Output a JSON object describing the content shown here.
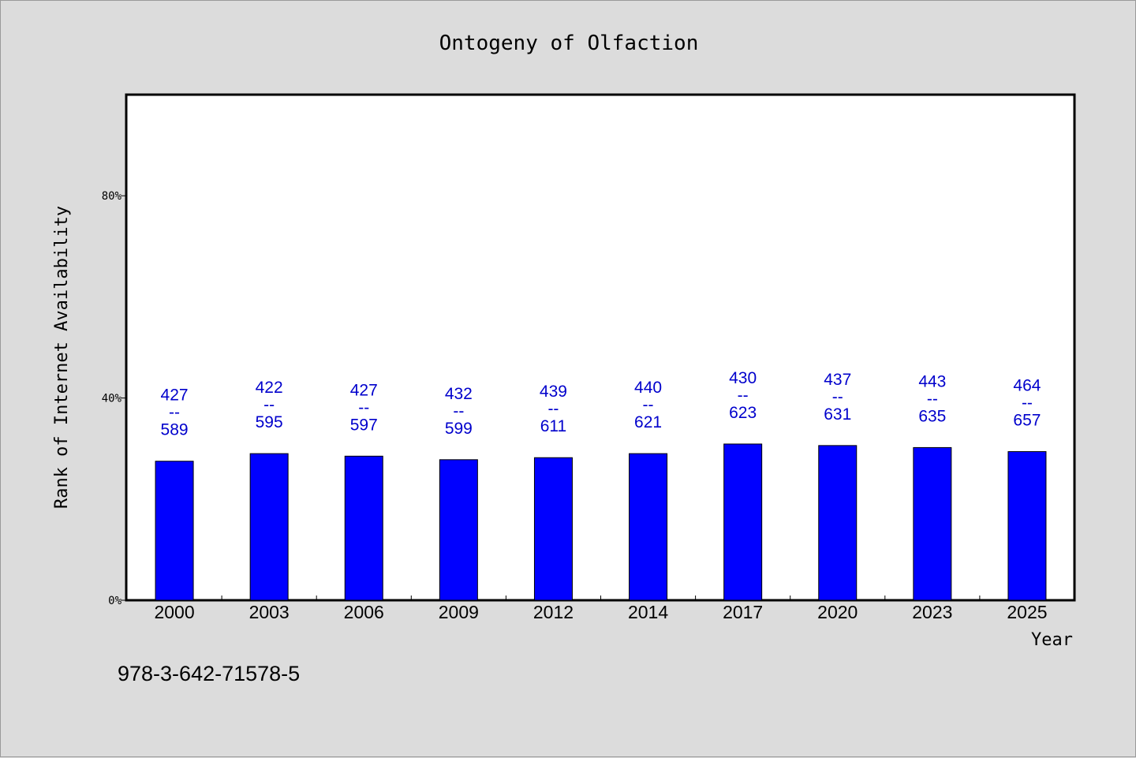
{
  "chart_data": {
    "type": "bar",
    "title": "Ontogeny of Olfaction",
    "xlabel": "Year",
    "ylabel": "Rank of Internet Availability",
    "categories": [
      "2000",
      "2003",
      "2006",
      "2009",
      "2012",
      "2014",
      "2017",
      "2020",
      "2023",
      "2025"
    ],
    "values": [
      27.5,
      29.0,
      28.5,
      27.8,
      28.2,
      29.0,
      30.9,
      30.6,
      30.2,
      29.4
    ],
    "bar_labels": [
      {
        "top": "427",
        "sep": "--",
        "bottom": "589"
      },
      {
        "top": "422",
        "sep": "--",
        "bottom": "595"
      },
      {
        "top": "427",
        "sep": "--",
        "bottom": "597"
      },
      {
        "top": "432",
        "sep": "--",
        "bottom": "599"
      },
      {
        "top": "439",
        "sep": "--",
        "bottom": "611"
      },
      {
        "top": "440",
        "sep": "--",
        "bottom": "621"
      },
      {
        "top": "430",
        "sep": "--",
        "bottom": "623"
      },
      {
        "top": "437",
        "sep": "--",
        "bottom": "631"
      },
      {
        "top": "443",
        "sep": "--",
        "bottom": "635"
      },
      {
        "top": "464",
        "sep": "--",
        "bottom": "657"
      }
    ],
    "yticks": [
      0,
      40,
      80
    ],
    "ytick_labels": [
      "0%",
      "40%",
      "80%"
    ],
    "ylim": [
      0,
      100
    ],
    "grid": false,
    "legend": "none",
    "colors": {
      "bar_fill": "#0000ff",
      "bar_edge": "#000000",
      "label": "#0000cc",
      "plot_bg": "#ffffff",
      "page_bg": "#dcdcdc"
    }
  },
  "footer": {
    "isbn": "978-3-642-71578-5"
  }
}
